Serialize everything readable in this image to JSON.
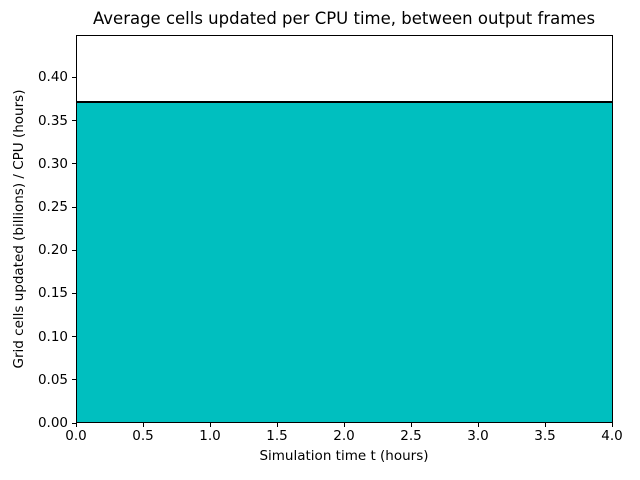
{
  "chart_data": {
    "type": "area",
    "title": "Average cells updated per CPU time, between output frames",
    "xlabel": "Simulation time t (hours)",
    "ylabel": "Grid cells updated (billions) / CPU (hours)",
    "x": [
      0.0,
      4.0
    ],
    "values": [
      0.372,
      0.372
    ],
    "constant_value": 0.372,
    "xlim": [
      0.0,
      4.0
    ],
    "ylim": [
      0.0,
      0.448
    ],
    "xticks": {
      "values": [
        0.0,
        0.5,
        1.0,
        1.5,
        2.0,
        2.5,
        3.0,
        3.5,
        4.0
      ],
      "labels": [
        "0.0",
        "0.5",
        "1.0",
        "1.5",
        "2.0",
        "2.5",
        "3.0",
        "3.5",
        "4.0"
      ]
    },
    "yticks": {
      "values": [
        0.0,
        0.05,
        0.1,
        0.15,
        0.2,
        0.25,
        0.3,
        0.35,
        0.4
      ],
      "labels": [
        "0.00",
        "0.05",
        "0.10",
        "0.15",
        "0.20",
        "0.25",
        "0.30",
        "0.35",
        "0.40"
      ]
    },
    "fill_color": "#00bfbf",
    "line_color": "#000000",
    "background_color": "#ffffff",
    "grid": false,
    "legend": null
  }
}
